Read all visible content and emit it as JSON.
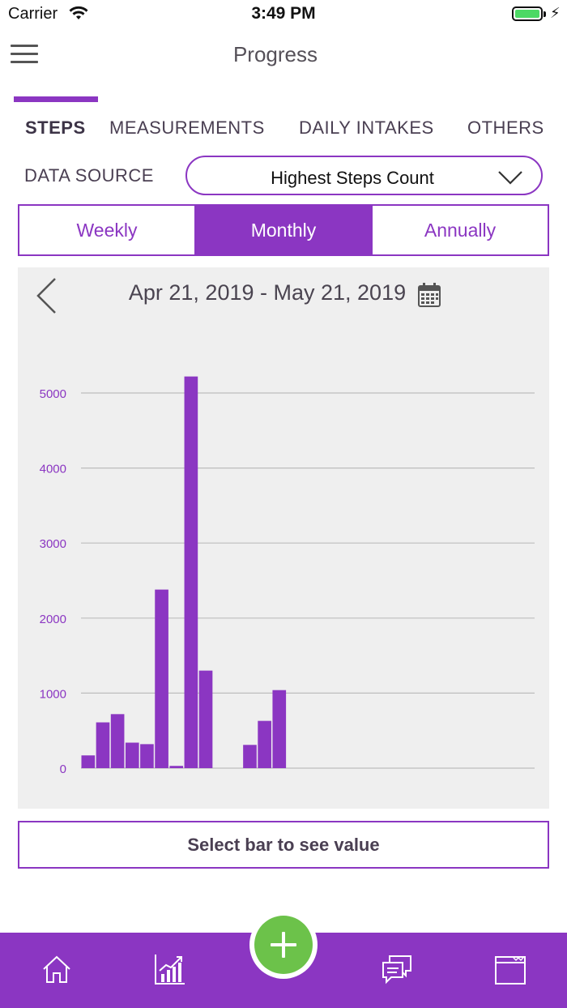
{
  "status_bar": {
    "carrier": "Carrier",
    "time": "3:49 PM"
  },
  "nav": {
    "title": "Progress",
    "menu_icon": "hamburger-menu-icon"
  },
  "tabs": [
    {
      "label": "STEPS",
      "active": true
    },
    {
      "label": "MEASUREMENTS",
      "active": false
    },
    {
      "label": "DAILY INTAKES",
      "active": false
    },
    {
      "label": "OTHERS",
      "active": false
    }
  ],
  "data_source": {
    "label": "DATA SOURCE",
    "selected": "Highest Steps Count"
  },
  "period_segments": [
    {
      "label": "Weekly",
      "active": false
    },
    {
      "label": "Monthly",
      "active": true
    },
    {
      "label": "Annually",
      "active": false
    }
  ],
  "date_range": "Apr 21, 2019 - May 21, 2019",
  "chart_data": {
    "type": "bar",
    "title": "",
    "xlabel": "",
    "ylabel": "",
    "ylim": [
      0,
      5000
    ],
    "yticks": [
      "0",
      "1000",
      "2000",
      "3000",
      "4000",
      "5000"
    ],
    "num_slots": 31,
    "values": [
      170,
      610,
      720,
      340,
      320,
      2380,
      30,
      5220,
      1300,
      0,
      0,
      310,
      630,
      1040
    ],
    "bar_color": "#8b36c2",
    "grid": true
  },
  "value_box": {
    "text": "Select bar to see value"
  },
  "bottom_bar": {
    "icons": [
      "home-icon",
      "chart-growth-icon",
      "add-icon",
      "chat-icon",
      "calendar-icon"
    ]
  },
  "colors": {
    "accent": "#8b36c2",
    "fab": "#6cc24a",
    "chart_bg": "#efefef"
  }
}
